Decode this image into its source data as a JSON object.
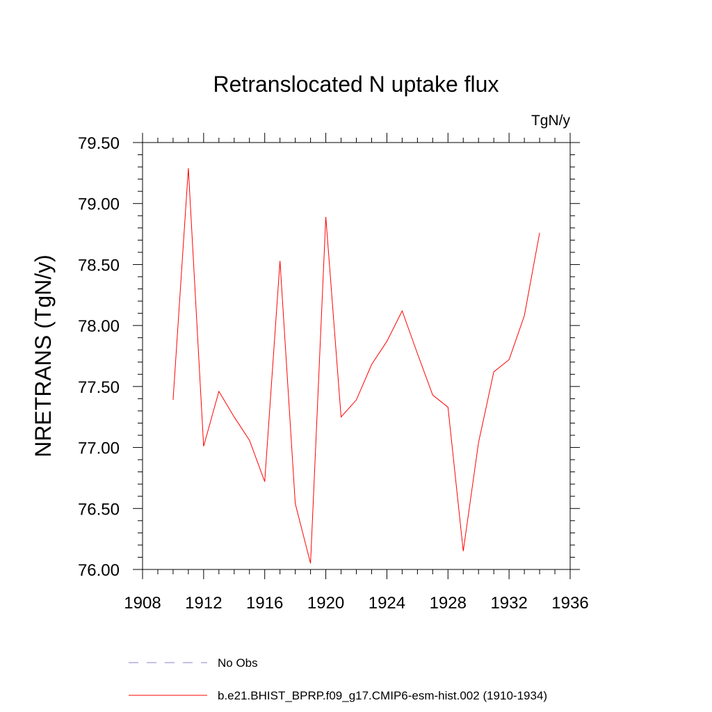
{
  "chart_data": {
    "type": "line",
    "title": "Retranslocated N uptake flux",
    "units": "TgN/y",
    "ylabel": "NRETRANS  (TgN/y)",
    "xlabel": "",
    "xlim": [
      1908,
      1936
    ],
    "ylim": [
      76.0,
      79.5
    ],
    "xticks": [
      "1908",
      "1912",
      "1916",
      "1920",
      "1924",
      "1928",
      "1932",
      "1936"
    ],
    "yticks": [
      "76.00",
      "76.50",
      "77.00",
      "77.50",
      "78.00",
      "78.50",
      "79.00",
      "79.50"
    ],
    "grid": false,
    "legend_position": "bottom",
    "series": [
      {
        "name": "b.e21.BHIST_BPRP.f09_g17.CMIP6-esm-hist.002 (1910-1934)",
        "color": "#ff0000",
        "style": "solid",
        "x": [
          1910,
          1911,
          1912,
          1913,
          1914,
          1915,
          1916,
          1917,
          1918,
          1919,
          1920,
          1921,
          1922,
          1923,
          1924,
          1925,
          1926,
          1927,
          1928,
          1929,
          1930,
          1931,
          1932,
          1933,
          1934
        ],
        "y": [
          77.39,
          79.29,
          77.01,
          77.46,
          77.25,
          77.06,
          76.72,
          78.53,
          76.54,
          76.05,
          78.89,
          77.25,
          77.39,
          77.68,
          77.87,
          78.12,
          77.77,
          77.43,
          77.33,
          76.15,
          77.04,
          77.62,
          77.72,
          78.08,
          78.76
        ]
      },
      {
        "name": "No Obs",
        "color": "#8a7fc8",
        "style": "dashed",
        "x": [],
        "y": []
      }
    ]
  }
}
